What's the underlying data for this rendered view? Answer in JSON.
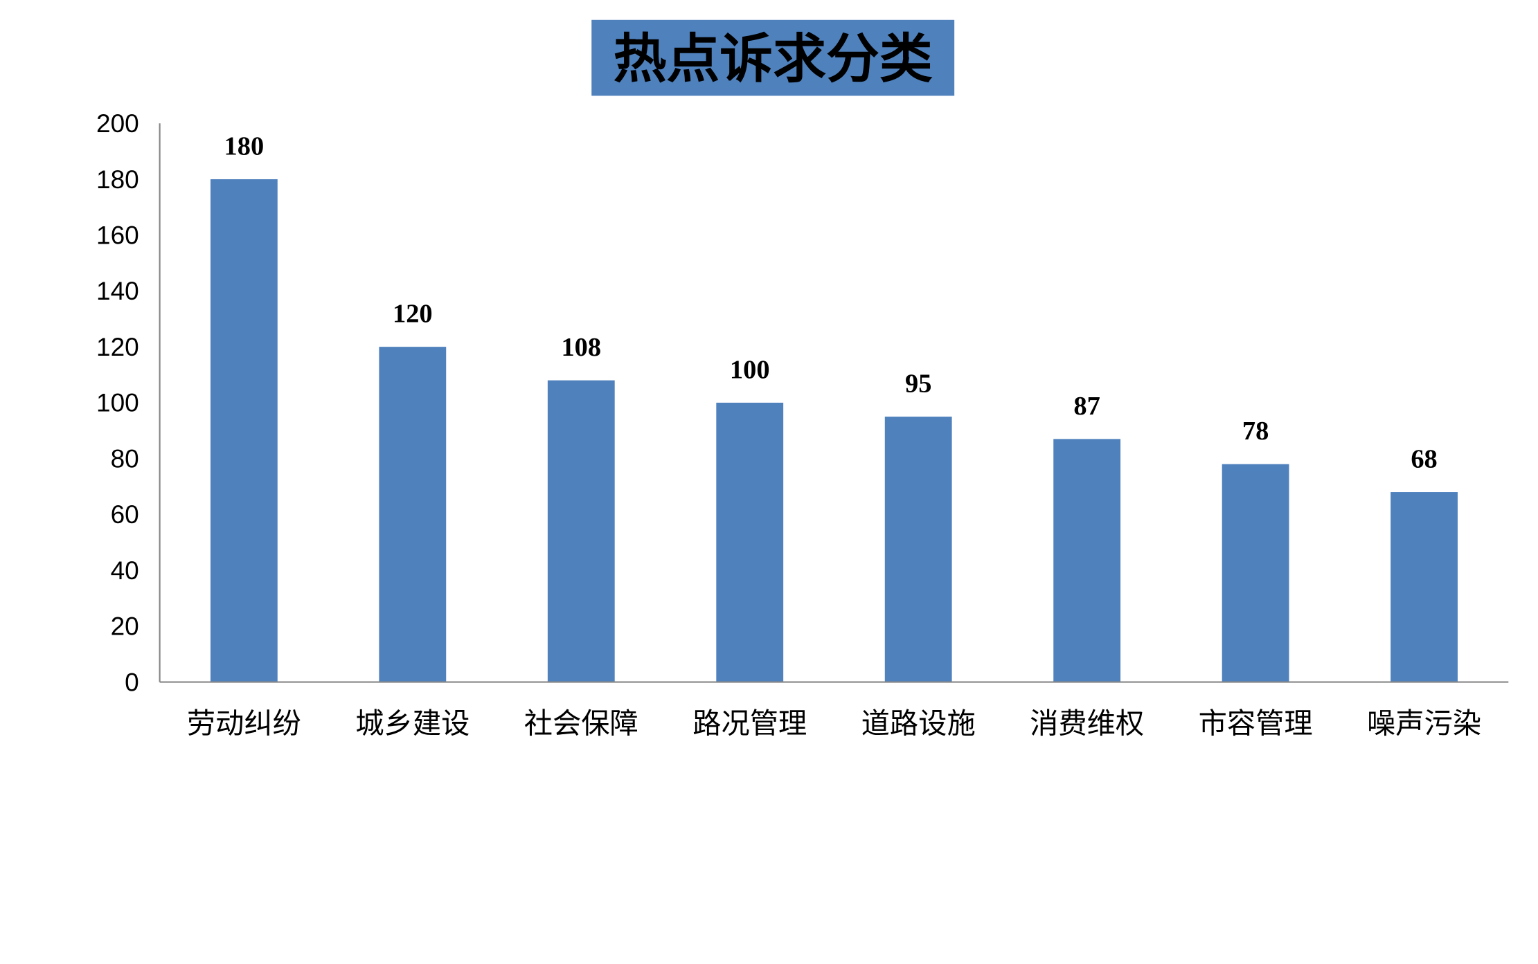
{
  "chart_data": {
    "type": "bar",
    "title": "热点诉求分类",
    "categories": [
      "劳动纠纷",
      "城乡建设",
      "社会保障",
      "路况管理",
      "道路设施",
      "消费维权",
      "市容管理",
      "噪声污染"
    ],
    "values": [
      180,
      120,
      108,
      100,
      95,
      87,
      78,
      68
    ],
    "ylim": [
      0,
      200
    ],
    "yticks": [
      0,
      20,
      40,
      60,
      80,
      100,
      120,
      140,
      160,
      180,
      200
    ],
    "xlabel": "",
    "ylabel": "",
    "grid": false,
    "data_labels": true,
    "colors": {
      "bar": "#4F81BD",
      "title_box": "#4F81BD",
      "axis": "#868686"
    }
  }
}
